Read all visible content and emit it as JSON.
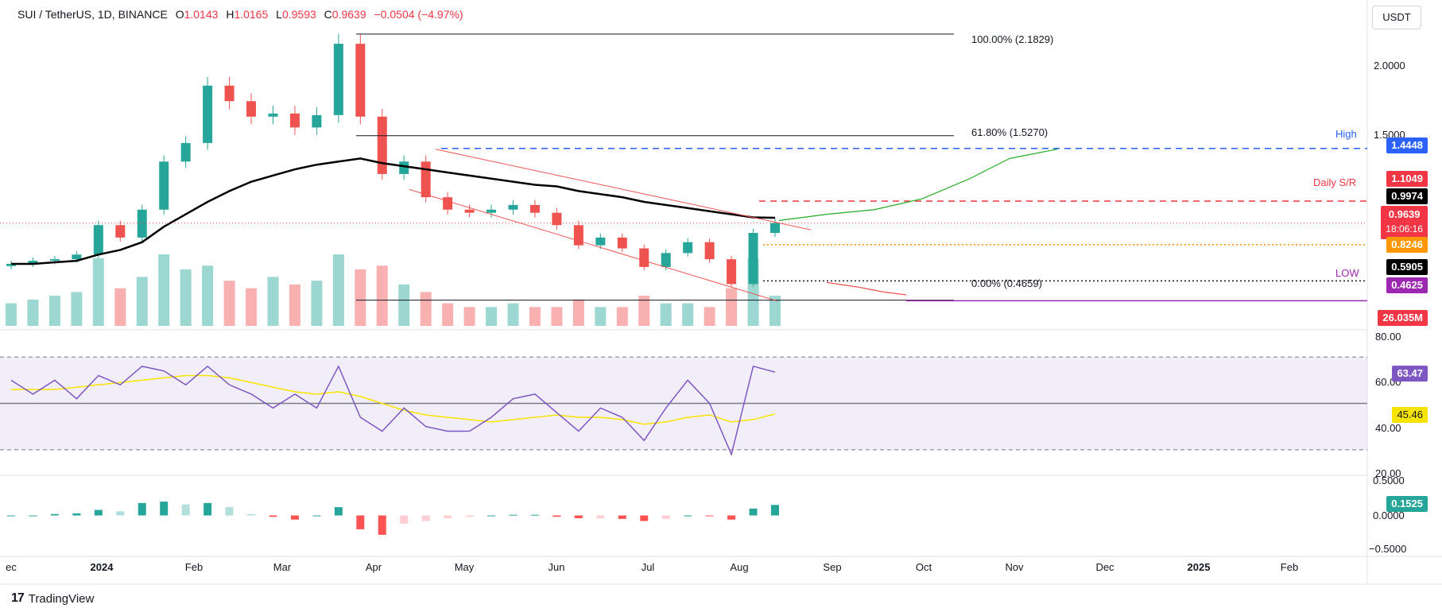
{
  "header": {
    "symbol": "SUI / TetherUS, 1D, BINANCE",
    "o_label": "O",
    "o_value": "1.0143",
    "h_label": "H",
    "h_value": "1.0165",
    "l_label": "L",
    "l_value": "0.9593",
    "c_label": "C",
    "c_value": "0.9639",
    "change": "−0.0504 (−4.97%)"
  },
  "currency_button": "USDT",
  "price_axis": [
    "2.0000",
    "1.5000"
  ],
  "fib_levels": [
    {
      "label": "100.00% (2.1829)",
      "value": 2.1829
    },
    {
      "label": "61.80% (1.5270)",
      "value": 1.527
    },
    {
      "label": "0.00% (0.4659)",
      "value": 0.4659
    }
  ],
  "annotations": {
    "high": "High",
    "daily_sr": "Daily S/R",
    "low": "LOW"
  },
  "price_tags": {
    "high": "1.4448",
    "daily_sr": "1.1049",
    "sma200": "0.9974",
    "last": "0.9639",
    "countdown": "18:06:16",
    "support1": "0.8246",
    "support2": "0.5905",
    "low": "0.4625",
    "volume": "26.035M"
  },
  "rsi": {
    "axis": [
      "80.00",
      "60.00",
      "40.00",
      "20.00"
    ],
    "value": "63.47",
    "signal": "45.46"
  },
  "macd": {
    "axis": [
      "0.5000",
      "0.0000",
      "−0.5000"
    ],
    "value": "0.1525"
  },
  "time_axis": [
    {
      "label": "ec",
      "bold": false
    },
    {
      "label": "2024",
      "bold": true
    },
    {
      "label": "Feb",
      "bold": false
    },
    {
      "label": "Mar",
      "bold": false
    },
    {
      "label": "Apr",
      "bold": false
    },
    {
      "label": "May",
      "bold": false
    },
    {
      "label": "Jun",
      "bold": false
    },
    {
      "label": "Jul",
      "bold": false
    },
    {
      "label": "Aug",
      "bold": false
    },
    {
      "label": "Sep",
      "bold": false
    },
    {
      "label": "Oct",
      "bold": false
    },
    {
      "label": "Nov",
      "bold": false
    },
    {
      "label": "Dec",
      "bold": false
    },
    {
      "label": "2025",
      "bold": true
    },
    {
      "label": "Feb",
      "bold": false
    }
  ],
  "branding": "TradingView",
  "colors": {
    "up": "#26a69a",
    "down": "#ef5350",
    "sma": "#000000",
    "high_line": "#2962ff",
    "sr_line": "#f23645",
    "low_line": "#9c27b0",
    "rsi": "#7e57c2",
    "rsi_ma": "#f7e400",
    "support1": "#ff9800"
  },
  "chart_data": {
    "type": "candlestick",
    "title": "SUI / TetherUS, 1D, BINANCE",
    "x": [
      "2023-12-13",
      "2023-12-20",
      "2023-12-27",
      "2024-01-03",
      "2024-01-10",
      "2024-01-17",
      "2024-01-24",
      "2024-01-31",
      "2024-02-07",
      "2024-02-14",
      "2024-02-21",
      "2024-02-28",
      "2024-03-06",
      "2024-03-13",
      "2024-03-20",
      "2024-03-27",
      "2024-04-03",
      "2024-04-10",
      "2024-04-17",
      "2024-04-24",
      "2024-05-01",
      "2024-05-08",
      "2024-05-15",
      "2024-05-22",
      "2024-05-29",
      "2024-06-05",
      "2024-06-12",
      "2024-06-19",
      "2024-06-26",
      "2024-07-03",
      "2024-07-10",
      "2024-07-17",
      "2024-07-24",
      "2024-07-31",
      "2024-08-07",
      "2024-08-12"
    ],
    "close": [
      0.7,
      0.72,
      0.73,
      0.76,
      0.95,
      0.87,
      1.05,
      1.36,
      1.48,
      1.85,
      1.75,
      1.65,
      1.67,
      1.58,
      1.66,
      2.12,
      1.65,
      1.28,
      1.36,
      1.13,
      1.05,
      1.03,
      1.05,
      1.08,
      1.03,
      0.95,
      0.82,
      0.87,
      0.8,
      0.68,
      0.77,
      0.84,
      0.73,
      0.57,
      0.9,
      0.9639
    ],
    "sma200": [
      0.7,
      0.7,
      0.71,
      0.72,
      0.76,
      0.79,
      0.84,
      0.94,
      1.02,
      1.1,
      1.17,
      1.23,
      1.27,
      1.31,
      1.34,
      1.36,
      1.38,
      1.35,
      1.33,
      1.31,
      1.29,
      1.27,
      1.25,
      1.23,
      1.21,
      1.2,
      1.17,
      1.15,
      1.13,
      1.1,
      1.08,
      1.06,
      1.04,
      1.02,
      1.0,
      0.9974
    ],
    "volume": [
      0.6,
      0.7,
      0.8,
      0.9,
      1.8,
      1.0,
      1.3,
      1.9,
      1.5,
      1.6,
      1.2,
      1.0,
      1.3,
      1.1,
      1.2,
      1.9,
      1.5,
      1.6,
      1.1,
      0.9,
      0.6,
      0.5,
      0.5,
      0.6,
      0.5,
      0.5,
      0.7,
      0.5,
      0.5,
      0.8,
      0.6,
      0.6,
      0.5,
      1.0,
      1.8,
      0.8
    ],
    "rsi": [
      60,
      54,
      60,
      52,
      62,
      58,
      66,
      64,
      58,
      66,
      58,
      54,
      48,
      54,
      48,
      66,
      44,
      38,
      48,
      40,
      38,
      38,
      44,
      52,
      54,
      46,
      38,
      48,
      44,
      34,
      48,
      60,
      50,
      28,
      66,
      63.47
    ],
    "rsi_ma": [
      56,
      56,
      56,
      57,
      58,
      59,
      60,
      61,
      62,
      62,
      61,
      59,
      57,
      55,
      54,
      55,
      53,
      50,
      47,
      45,
      44,
      43,
      42,
      43,
      44,
      45,
      44,
      44,
      43,
      41,
      42,
      44,
      45,
      42,
      43,
      45.46
    ],
    "macd_hist": [
      0.0,
      0.0,
      0.02,
      0.03,
      0.08,
      0.06,
      0.18,
      0.2,
      0.16,
      0.18,
      0.12,
      0.02,
      -0.02,
      -0.06,
      0.0,
      0.12,
      -0.2,
      -0.28,
      -0.12,
      -0.08,
      -0.04,
      -0.02,
      0.0,
      0.01,
      0.01,
      -0.02,
      -0.04,
      -0.04,
      -0.05,
      -0.08,
      -0.05,
      0.0,
      -0.01,
      -0.06,
      0.1,
      0.1525
    ],
    "ylim_price": [
      0.3,
      2.3
    ],
    "ylim_rsi": [
      20,
      80
    ],
    "ylim_macd": [
      -0.5,
      0.5
    ]
  }
}
